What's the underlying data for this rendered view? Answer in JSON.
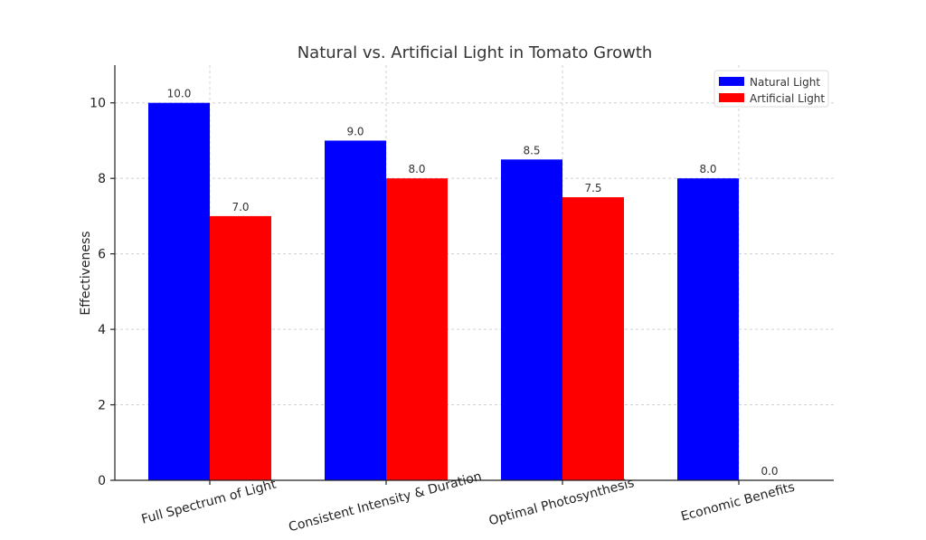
{
  "chart_data": {
    "type": "bar",
    "title": "Natural vs. Artificial Light in Tomato Growth",
    "xlabel": "",
    "ylabel": "Effectiveness",
    "categories": [
      "Full Spectrum of Light",
      "Consistent Intensity & Duration",
      "Optimal Photosynthesis",
      "Economic Benefits"
    ],
    "series": [
      {
        "name": "Natural Light",
        "values": [
          10.0,
          9.0,
          8.5,
          8.0
        ],
        "color": "#0000ff"
      },
      {
        "name": "Artificial Light",
        "values": [
          7.0,
          8.0,
          7.5,
          0.0
        ],
        "color": "#ff0000"
      }
    ],
    "data_labels": [
      [
        "10.0",
        "9.0",
        "8.5",
        "8.0"
      ],
      [
        "7.0",
        "8.0",
        "7.5",
        "0.0"
      ]
    ],
    "ylim": [
      0,
      11
    ],
    "yticks": [
      0,
      2,
      4,
      6,
      8,
      10
    ],
    "grid": true,
    "legend_position": "top-right"
  }
}
